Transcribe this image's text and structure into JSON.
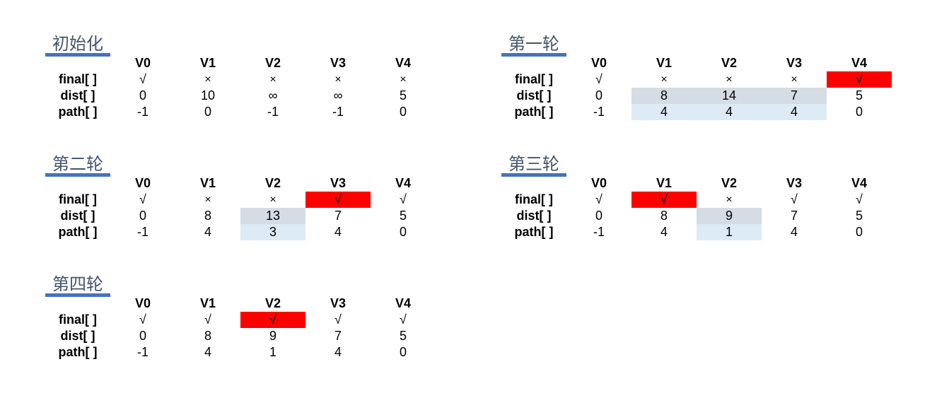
{
  "columns": [
    "V0",
    "V1",
    "V2",
    "V3",
    "V4"
  ],
  "row_labels": [
    "final[ ]",
    "dist[ ]",
    "path[ ]"
  ],
  "colors": {
    "title_underline": "#4472c4",
    "title_text": "#44546a",
    "finalized_highlight": "#ff0000",
    "updated_dist_highlight": "#d6dce4",
    "updated_path_highlight": "#ddebf7"
  },
  "panels": [
    {
      "title": "初始化",
      "final": [
        "√",
        "×",
        "×",
        "×",
        "×"
      ],
      "dist": [
        "0",
        "10",
        "∞",
        "∞",
        "5"
      ],
      "path": [
        "-1",
        "0",
        "-1",
        "-1",
        "0"
      ],
      "highlight_final": [],
      "highlight_dist": [],
      "highlight_path": []
    },
    {
      "title": "第一轮",
      "final": [
        "√",
        "×",
        "×",
        "×",
        "√"
      ],
      "dist": [
        "0",
        "8",
        "14",
        "7",
        "5"
      ],
      "path": [
        "-1",
        "4",
        "4",
        "4",
        "0"
      ],
      "highlight_final": [
        4
      ],
      "highlight_dist": [
        1,
        2,
        3
      ],
      "highlight_path": [
        1,
        2,
        3
      ]
    },
    {
      "title": "第二轮",
      "final": [
        "√",
        "×",
        "×",
        "√",
        "√"
      ],
      "dist": [
        "0",
        "8",
        "13",
        "7",
        "5"
      ],
      "path": [
        "-1",
        "4",
        "3",
        "4",
        "0"
      ],
      "highlight_final": [
        3
      ],
      "highlight_dist": [
        2
      ],
      "highlight_path": [
        2
      ]
    },
    {
      "title": "第三轮",
      "final": [
        "√",
        "√",
        "×",
        "√",
        "√"
      ],
      "dist": [
        "0",
        "8",
        "9",
        "7",
        "5"
      ],
      "path": [
        "-1",
        "4",
        "1",
        "4",
        "0"
      ],
      "highlight_final": [
        1
      ],
      "highlight_dist": [
        2
      ],
      "highlight_path": [
        2
      ]
    },
    {
      "title": "第四轮",
      "final": [
        "√",
        "√",
        "√",
        "√",
        "√"
      ],
      "dist": [
        "0",
        "8",
        "9",
        "7",
        "5"
      ],
      "path": [
        "-1",
        "4",
        "1",
        "4",
        "0"
      ],
      "highlight_final": [
        2
      ],
      "highlight_dist": [],
      "highlight_path": []
    }
  ]
}
